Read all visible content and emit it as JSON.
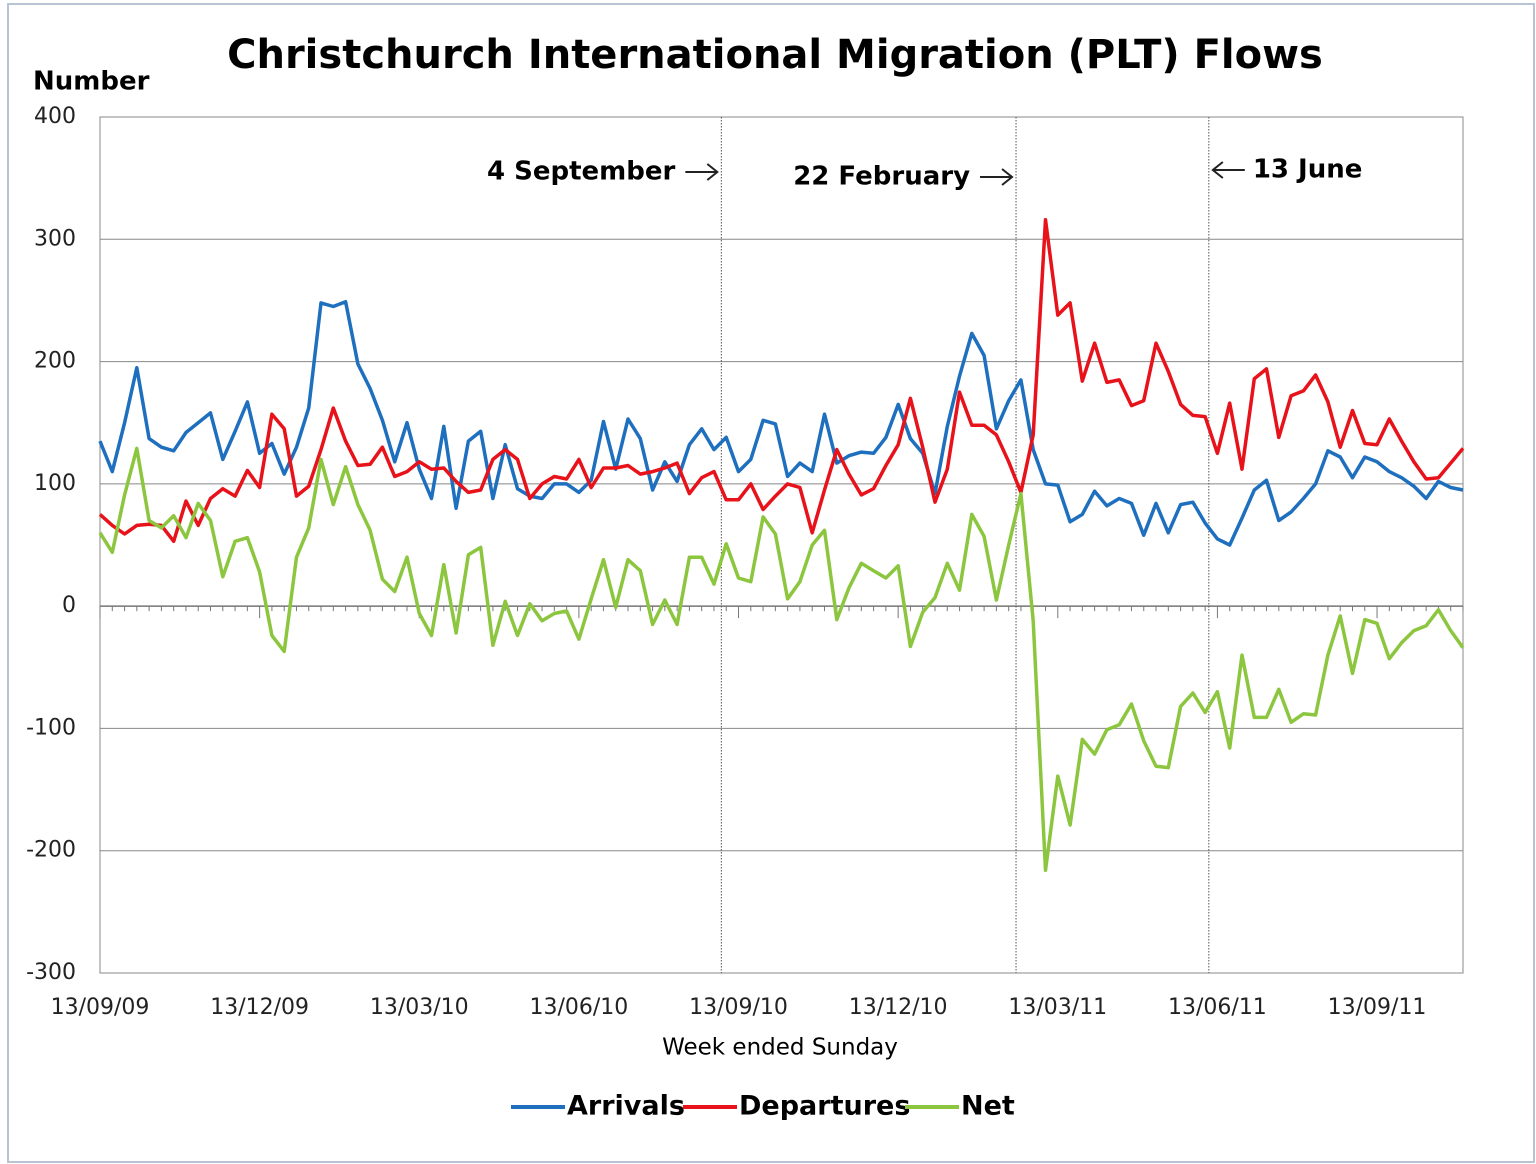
{
  "chart_data": {
    "type": "line",
    "title": "Christchurch International Migration (PLT) Flows",
    "y_label": "Number",
    "x_label": "Week ended Sunday",
    "annotations": [
      "4 September",
      "22 February",
      "13 June"
    ],
    "categories": [
      "13/09/09",
      null,
      null,
      null,
      null,
      null,
      null,
      null,
      null,
      null,
      null,
      null,
      null,
      "13/12/09",
      null,
      null,
      null,
      null,
      null,
      null,
      null,
      null,
      null,
      null,
      null,
      null,
      "13/03/10",
      null,
      null,
      null,
      null,
      null,
      null,
      null,
      null,
      null,
      null,
      null,
      null,
      "13/06/10",
      null,
      null,
      null,
      null,
      null,
      null,
      null,
      null,
      null,
      null,
      null,
      null,
      "13/09/10",
      null,
      null,
      null,
      null,
      null,
      null,
      null,
      null,
      null,
      null,
      null,
      null,
      "13/12/10",
      null,
      null,
      null,
      null,
      null,
      null,
      null,
      null,
      null,
      null,
      null,
      null,
      "13/03/11",
      null,
      null,
      null,
      null,
      null,
      null,
      null,
      null,
      null,
      null,
      null,
      null,
      "13/06/11",
      null,
      null,
      null,
      null,
      null,
      null,
      null,
      null,
      null,
      null,
      null,
      null,
      "13/09/11",
      null,
      null,
      null,
      null,
      null,
      null,
      null
    ],
    "series": [
      {
        "name": "Arrivals",
        "color": "#1f6fbf",
        "values": [
          135,
          110,
          150,
          195,
          137,
          130,
          127,
          142,
          150,
          158,
          120,
          143,
          167,
          125,
          133,
          108,
          130,
          162,
          248,
          245,
          249,
          198,
          178,
          152,
          118,
          150,
          112,
          88,
          147,
          80,
          135,
          143,
          88,
          132,
          96,
          90,
          88,
          100,
          100,
          93,
          103,
          151,
          112,
          153,
          137,
          95,
          118,
          102,
          132,
          145,
          128,
          138,
          110,
          120,
          152,
          149,
          106,
          117,
          110,
          157,
          117,
          123,
          126,
          125,
          138,
          165,
          137,
          125,
          92,
          147,
          188,
          223,
          205,
          145,
          168,
          185,
          128,
          100,
          99,
          69,
          75,
          94,
          82,
          88,
          84,
          58,
          84,
          60,
          83,
          85,
          68,
          55,
          50,
          72,
          95,
          103,
          70,
          77,
          88,
          100,
          127,
          122,
          105,
          122,
          118,
          110,
          105,
          98,
          88,
          102,
          97,
          95
        ]
      },
      {
        "name": "Departures",
        "color": "#e8121b",
        "values": [
          75,
          66,
          59,
          66,
          67,
          66,
          53,
          86,
          66,
          88,
          96,
          90,
          111,
          97,
          157,
          145,
          90,
          98,
          128,
          162,
          135,
          115,
          116,
          130,
          106,
          110,
          118,
          112,
          113,
          102,
          93,
          95,
          120,
          128,
          120,
          88,
          100,
          106,
          104,
          120,
          97,
          113,
          113,
          115,
          108,
          110,
          113,
          117,
          92,
          105,
          110,
          87,
          87,
          100,
          79,
          90,
          100,
          97,
          60,
          95,
          128,
          108,
          91,
          96,
          115,
          132,
          170,
          130,
          85,
          112,
          175,
          148,
          148,
          140,
          118,
          93,
          140,
          316,
          238,
          248,
          184,
          215,
          183,
          185,
          164,
          168,
          215,
          192,
          165,
          156,
          155,
          125,
          166,
          112,
          186,
          194,
          138,
          172,
          176,
          189,
          167,
          130,
          160,
          133,
          132,
          153,
          135,
          118,
          104,
          105,
          117,
          129
        ]
      },
      {
        "name": "Net",
        "color": "#8cc63f",
        "values": [
          60,
          44,
          91,
          129,
          70,
          64,
          74,
          56,
          84,
          70,
          24,
          53,
          56,
          28,
          -24,
          -37,
          40,
          64,
          120,
          83,
          114,
          83,
          62,
          22,
          12,
          40,
          -6,
          -24,
          34,
          -22,
          42,
          48,
          -32,
          4,
          -24,
          2,
          -12,
          -6,
          -4,
          -27,
          6,
          38,
          -1,
          38,
          29,
          -15,
          5,
          -15,
          40,
          40,
          18,
          51,
          23,
          20,
          73,
          59,
          6,
          20,
          50,
          62,
          -11,
          15,
          35,
          29,
          23,
          33,
          -33,
          -5,
          7,
          35,
          13,
          75,
          57,
          5,
          50,
          92,
          -12,
          -216,
          -139,
          -179,
          -109,
          -121,
          -101,
          -97,
          -80,
          -110,
          -131,
          -132,
          -82,
          -71,
          -87,
          -70,
          -116,
          -40,
          -91,
          -91,
          -68,
          -95,
          -88,
          -89,
          -40,
          -8,
          -55,
          -11,
          -14,
          -43,
          -30,
          -20,
          -16,
          -3,
          -20,
          -34
        ]
      }
    ],
    "ylim": [
      -300,
      400
    ],
    "yticks": [
      -300,
      -200,
      -100,
      0,
      100,
      200,
      300,
      400
    ],
    "grid": true,
    "legend": "bottom"
  }
}
